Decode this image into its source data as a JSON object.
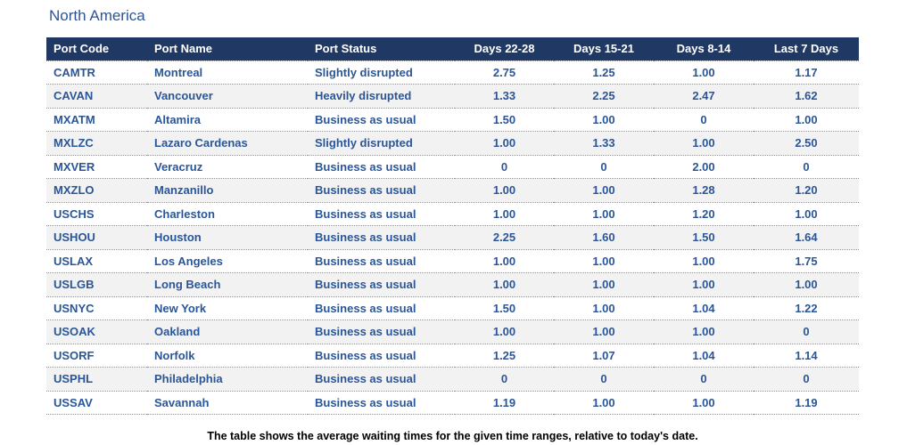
{
  "chart_data": {
    "type": "table",
    "title": "North America",
    "columns": [
      "Port Code",
      "Port Name",
      "Port Status",
      "Days 22-28",
      "Days 15-21",
      "Days 8-14",
      "Last 7 Days"
    ],
    "rows": [
      [
        "CAMTR",
        "Montreal",
        "Slightly disrupted",
        "2.75",
        "1.25",
        "1.00",
        "1.17"
      ],
      [
        "CAVAN",
        "Vancouver",
        "Heavily disrupted",
        "1.33",
        "2.25",
        "2.47",
        "1.62"
      ],
      [
        "MXATM",
        "Altamira",
        "Business as usual",
        "1.50",
        "1.00",
        "0",
        "1.00"
      ],
      [
        "MXLZC",
        "Lazaro Cardenas",
        "Slightly disrupted",
        "1.00",
        "1.33",
        "1.00",
        "2.50"
      ],
      [
        "MXVER",
        "Veracruz",
        "Business as usual",
        "0",
        "0",
        "2.00",
        "0"
      ],
      [
        "MXZLO",
        "Manzanillo",
        "Business as usual",
        "1.00",
        "1.00",
        "1.28",
        "1.20"
      ],
      [
        "USCHS",
        "Charleston",
        "Business as usual",
        "1.00",
        "1.00",
        "1.20",
        "1.00"
      ],
      [
        "USHOU",
        "Houston",
        "Business as usual",
        "2.25",
        "1.60",
        "1.50",
        "1.64"
      ],
      [
        "USLAX",
        "Los Angeles",
        "Business as usual",
        "1.00",
        "1.00",
        "1.00",
        "1.75"
      ],
      [
        "USLGB",
        "Long Beach",
        "Business as usual",
        "1.00",
        "1.00",
        "1.00",
        "1.00"
      ],
      [
        "USNYC",
        "New York",
        "Business as usual",
        "1.50",
        "1.00",
        "1.04",
        "1.22"
      ],
      [
        "USOAK",
        "Oakland",
        "Business as usual",
        "1.00",
        "1.00",
        "1.00",
        "0"
      ],
      [
        "USORF",
        "Norfolk",
        "Business as usual",
        "1.25",
        "1.07",
        "1.04",
        "1.14"
      ],
      [
        "USPHL",
        "Philadelphia",
        "Business as usual",
        "0",
        "0",
        "0",
        "0"
      ],
      [
        "USSAV",
        "Savannah",
        "Business as usual",
        "1.19",
        "1.00",
        "1.00",
        "1.19"
      ]
    ],
    "caption": "The table shows the average waiting times for the given time ranges, relative to today's date."
  },
  "colors": {
    "header_bg": "#1F3864",
    "header_text": "#FFFFFF",
    "cell_text": "#2A5699",
    "title_text": "#2F5496",
    "stripe_bg": "#F2F2F2",
    "dot_border": "#8F8F8F",
    "caption_text": "#000000",
    "page_bg": "#FFFFFF"
  }
}
